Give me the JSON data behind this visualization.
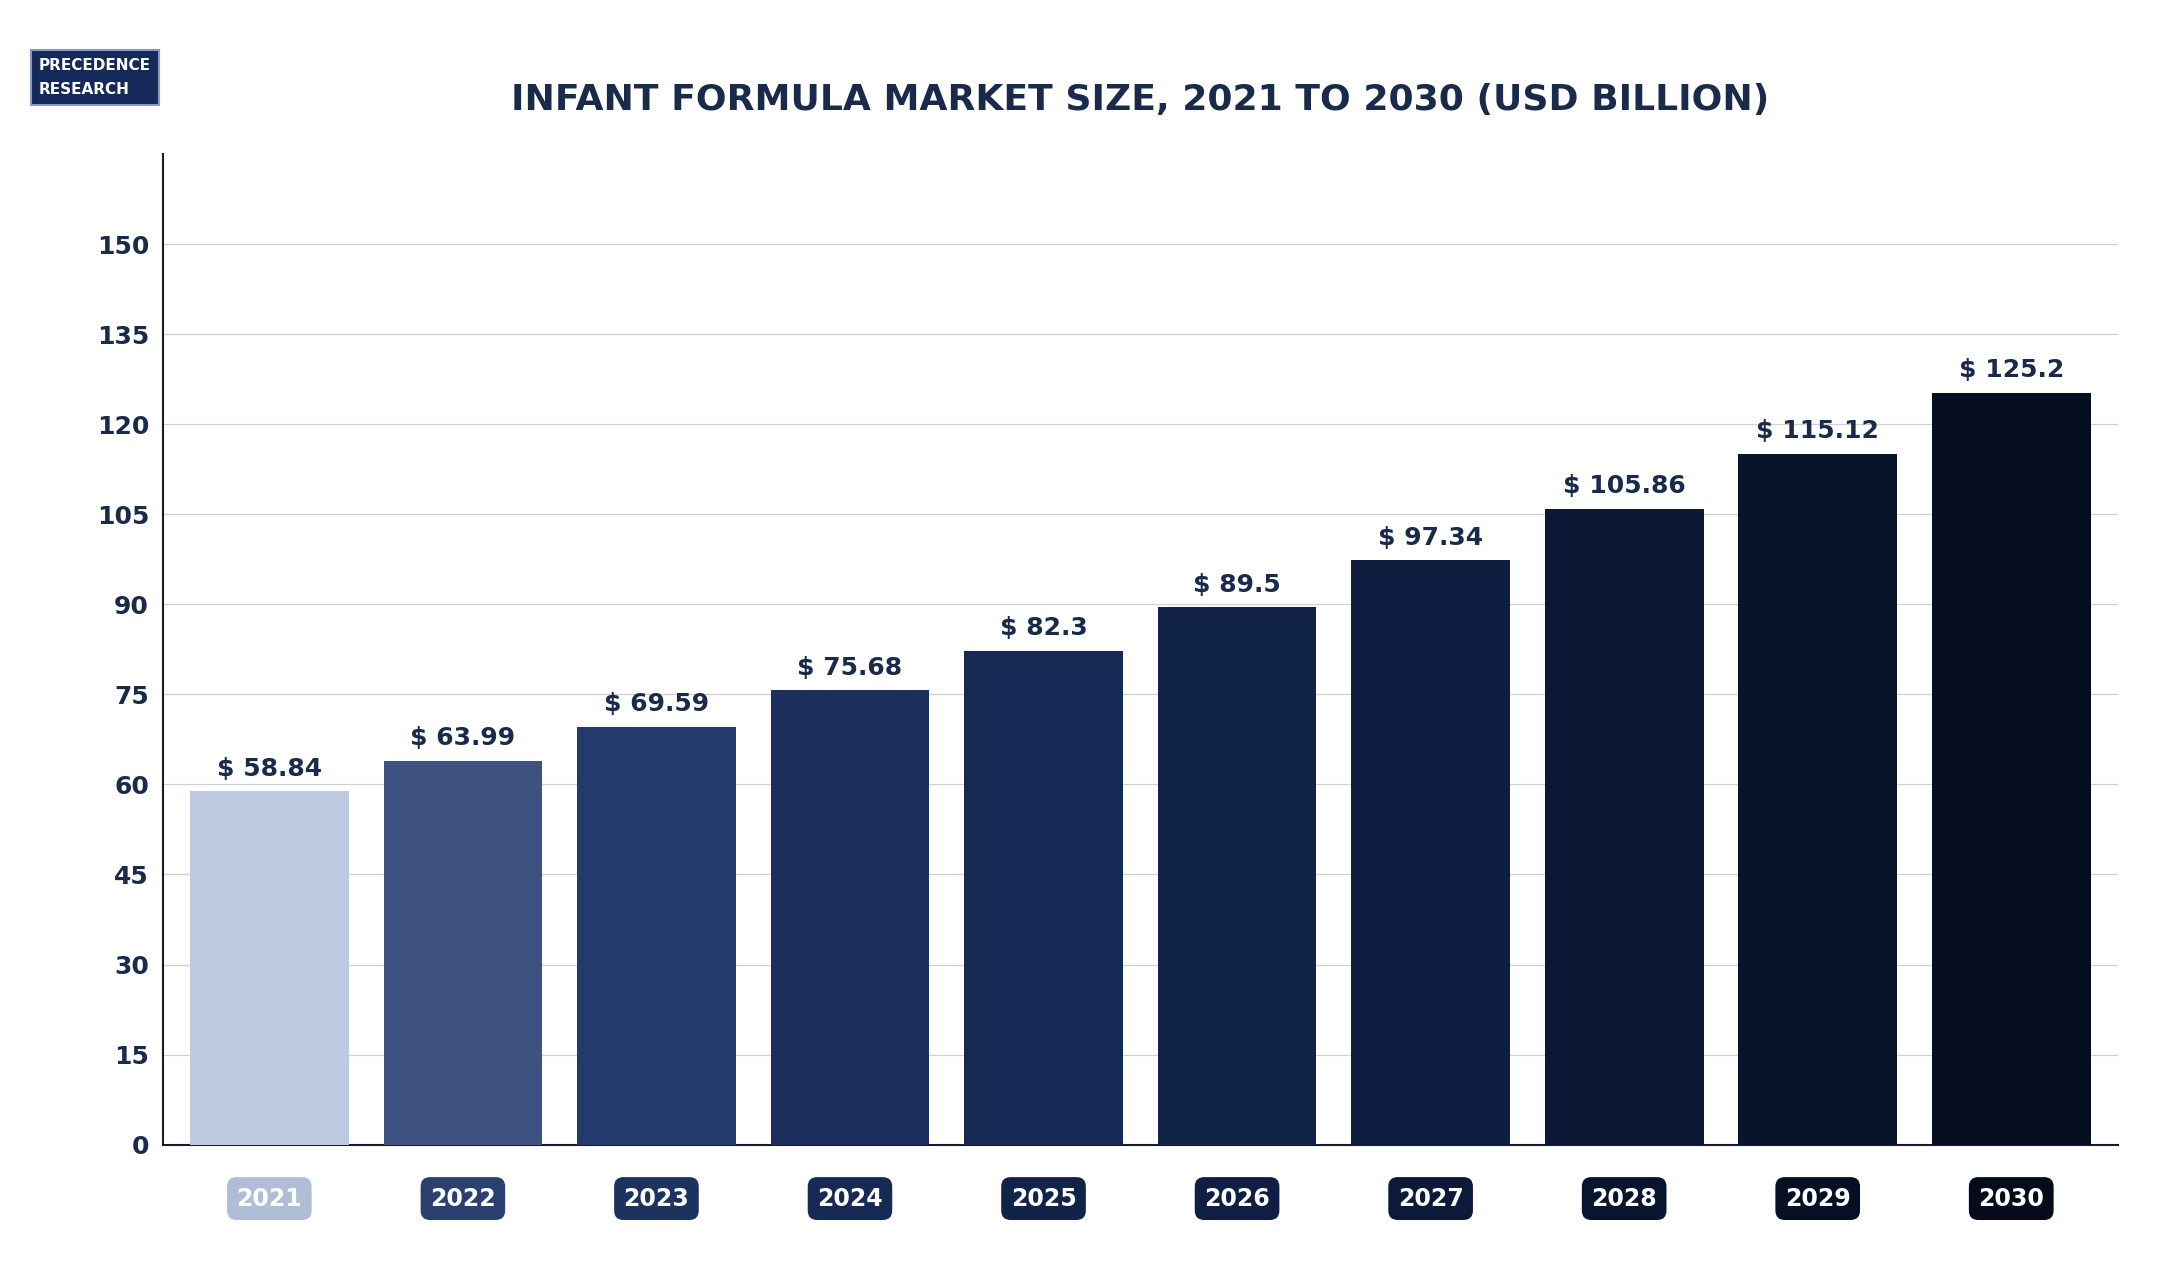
{
  "title": "INFANT FORMULA MARKET SIZE, 2021 TO 2030 (USD BILLION)",
  "categories": [
    "2021",
    "2022",
    "2023",
    "2024",
    "2025",
    "2026",
    "2027",
    "2028",
    "2029",
    "2030"
  ],
  "values": [
    58.84,
    63.99,
    69.59,
    75.68,
    82.3,
    89.5,
    97.34,
    105.86,
    115.12,
    125.2
  ],
  "labels": [
    "$ 58.84",
    "$ 63.99",
    "$ 69.59",
    "$ 75.68",
    "$ 82.3",
    "$ 89.5",
    "$ 97.34",
    "$ 105.86",
    "$ 115.12",
    "$ 125.2"
  ],
  "bar_colors": [
    "#bdc9e0",
    "#3d5280",
    "#243a6e",
    "#1a2f5e",
    "#162854",
    "#12234a",
    "#0e1d40",
    "#0b1836",
    "#08132c",
    "#060e22"
  ],
  "yticks": [
    0,
    15,
    30,
    45,
    60,
    75,
    90,
    105,
    120,
    135,
    150
  ],
  "ylim": [
    0,
    165
  ],
  "background_color": "#ffffff",
  "plot_bg_color": "#ffffff",
  "grid_color": "#d0d0d0",
  "title_color": "#1a2a4a",
  "tick_label_color": "#1a2a4a",
  "bar_label_color": "#1a2a4a",
  "xticklabels_bg": [
    "#b0bdd6",
    "#2c4070",
    "#1e3260",
    "#162a55",
    "#12234a",
    "#0f1e42",
    "#0c1938",
    "#09142e",
    "#070f24",
    "#050b1a"
  ],
  "xticklabels_text_color": "#ffffff",
  "logo_text1": "PRECEDENCE",
  "logo_text2": "RESEARCH",
  "logo_bg": "#152a5a",
  "logo_text_color": "#ffffff",
  "title_fontsize": 26,
  "bar_label_fontsize": 18,
  "tick_fontsize": 18,
  "xtick_fontsize": 17,
  "left_spine_color": "#1a1a2e",
  "bottom_spine_color": "#1a1a2e"
}
